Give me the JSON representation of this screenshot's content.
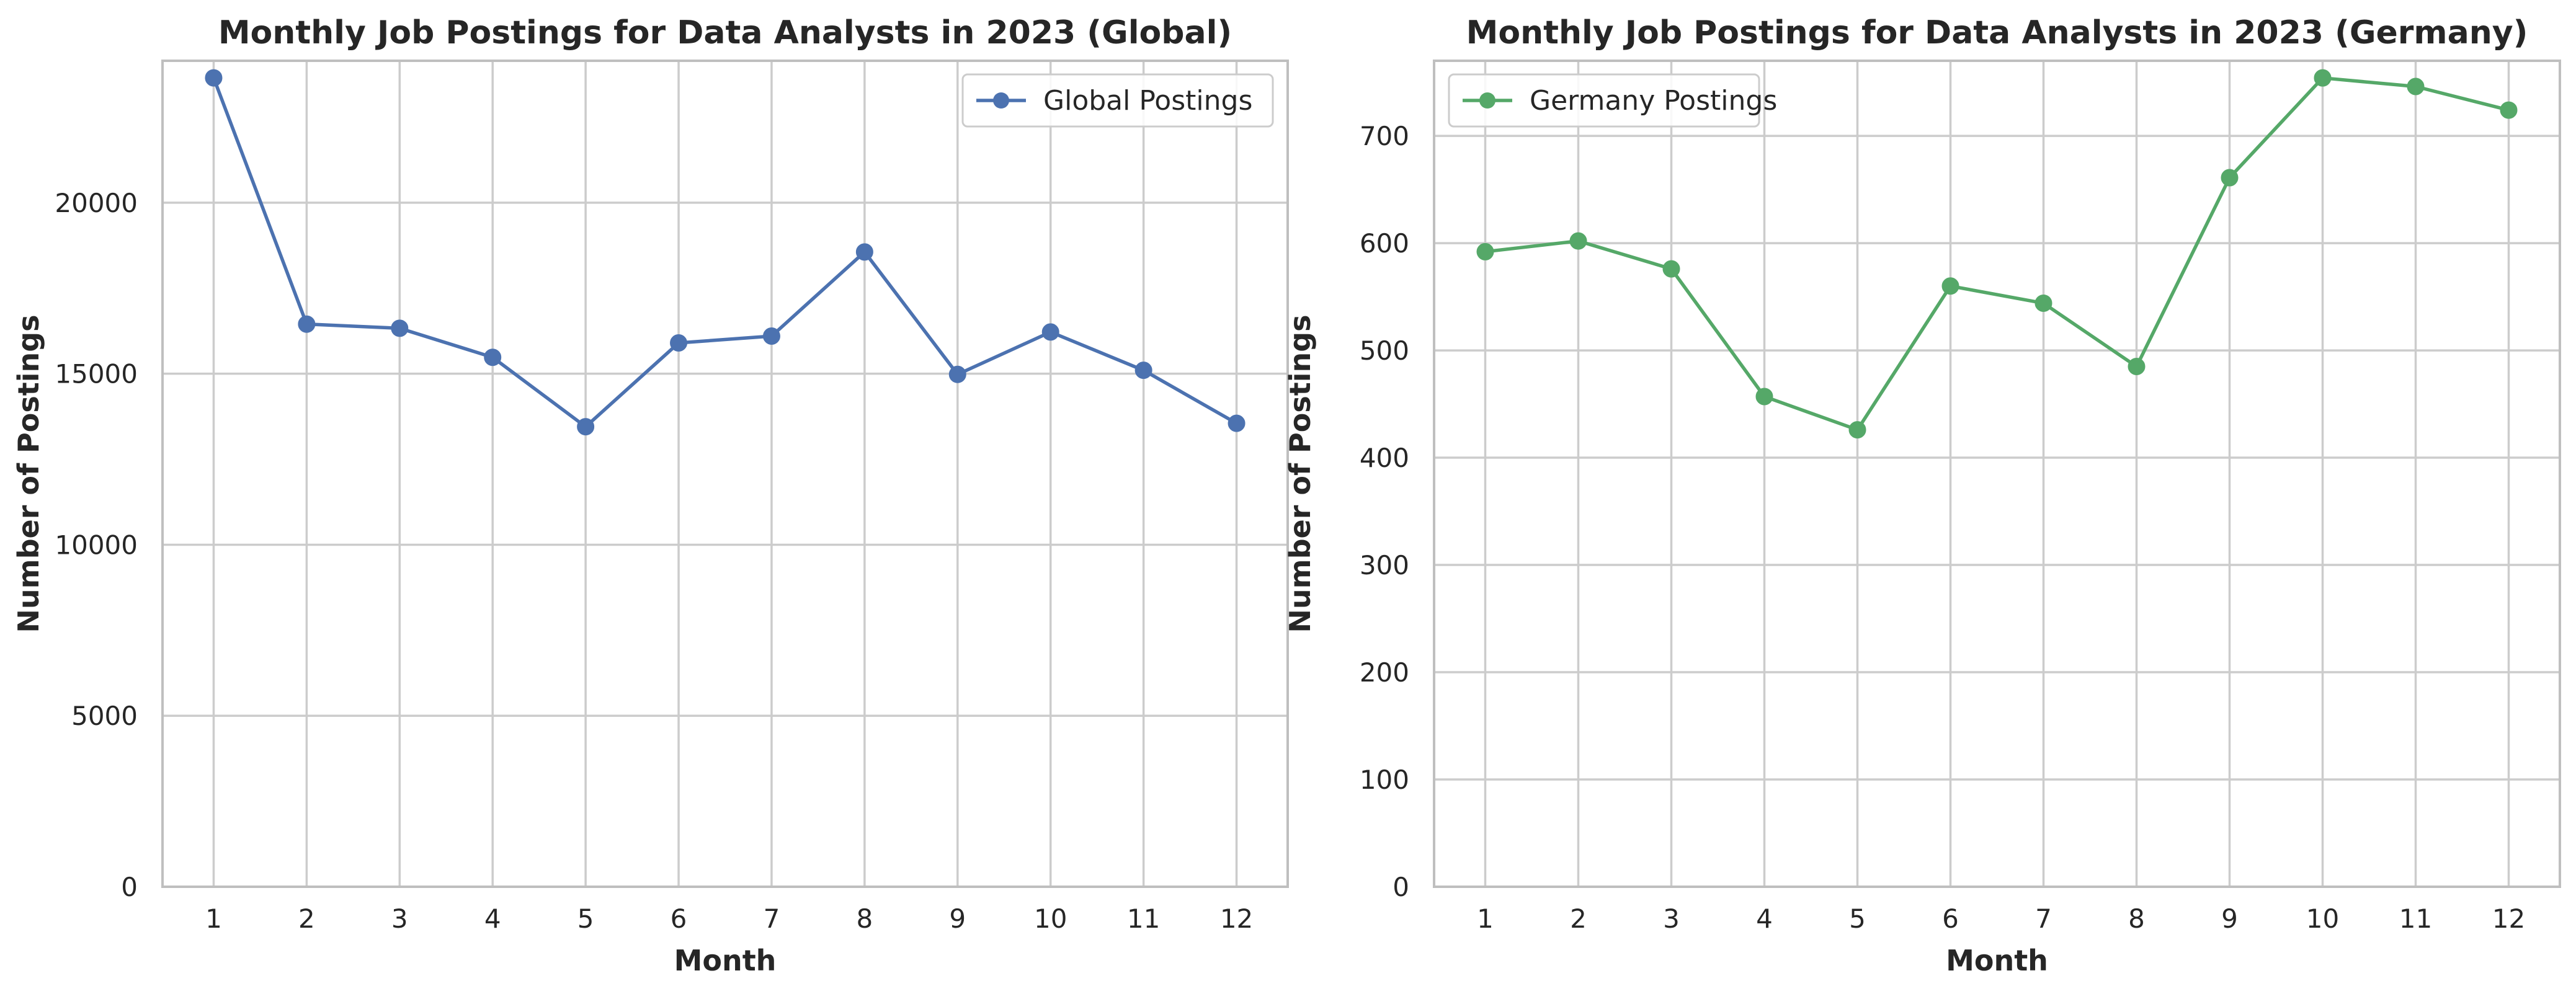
{
  "chart_data": [
    {
      "type": "line",
      "title": "Monthly Job Postings for Data Analysts in 2023 (Global)",
      "xlabel": "Month",
      "ylabel": "Number of Postings",
      "x": [
        1,
        2,
        3,
        4,
        5,
        6,
        7,
        8,
        9,
        10,
        11,
        12
      ],
      "xticks": [
        "1",
        "2",
        "3",
        "4",
        "5",
        "6",
        "7",
        "8",
        "9",
        "10",
        "11",
        "12"
      ],
      "yticks": [
        0,
        5000,
        10000,
        15000,
        20000
      ],
      "ylim": [
        0,
        24150
      ],
      "xlim": [
        0.45,
        12.55
      ],
      "grid": true,
      "legend_position": "top-right",
      "series": [
        {
          "name": "Global Postings",
          "color": "#4c72b0",
          "marker": "circle",
          "values": [
            23650,
            16450,
            16330,
            15480,
            13450,
            15900,
            16100,
            18560,
            14980,
            16220,
            15100,
            13550
          ]
        }
      ]
    },
    {
      "type": "line",
      "title": "Monthly Job Postings for Data Analysts in 2023 (Germany)",
      "xlabel": "Month",
      "ylabel": "Number of Postings",
      "x": [
        1,
        2,
        3,
        4,
        5,
        6,
        7,
        8,
        9,
        10,
        11,
        12
      ],
      "xticks": [
        "1",
        "2",
        "3",
        "4",
        "5",
        "6",
        "7",
        "8",
        "9",
        "10",
        "11",
        "12"
      ],
      "yticks": [
        0,
        100,
        200,
        300,
        400,
        500,
        600,
        700
      ],
      "ylim": [
        0,
        770
      ],
      "xlim": [
        0.45,
        12.55
      ],
      "grid": true,
      "legend_position": "top-left",
      "series": [
        {
          "name": "Germany Postings",
          "color": "#55a868",
          "marker": "circle",
          "values": [
            592,
            602,
            576,
            457,
            426,
            560,
            544,
            485,
            661,
            754,
            746,
            724
          ]
        }
      ]
    }
  ]
}
